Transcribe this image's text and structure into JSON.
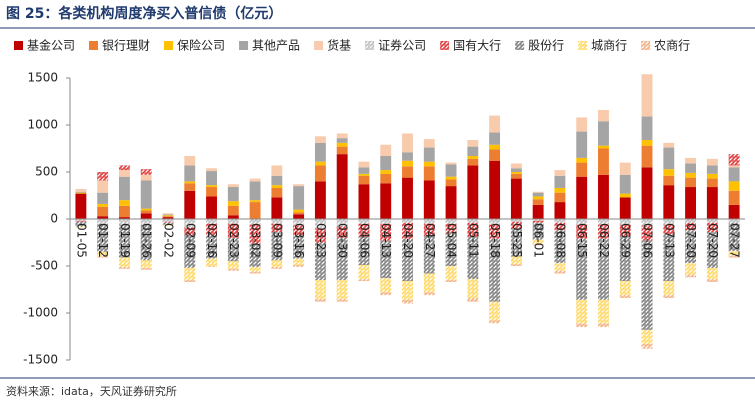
{
  "chart_data": {
    "type": "stacked_bar",
    "title": "图 25：各类机构周度净买入普信债（亿元）",
    "source": "资料来源：idata，天风证券研究所",
    "categories": [
      "01-05",
      "01-12",
      "01-19",
      "01-26",
      "02-02",
      "02-09",
      "02-16",
      "02-23",
      "03-02",
      "03-09",
      "03-16",
      "03-23",
      "03-30",
      "04-06",
      "04-13",
      "04-20",
      "04-27",
      "05-04",
      "05-11",
      "05-18",
      "05-25",
      "06-01",
      "06-08",
      "06-15",
      "06-22",
      "06-29",
      "07-06",
      "07-13",
      "07-20",
      "07-20",
      "07-27"
    ],
    "ylim": [
      -1500,
      1500
    ],
    "yticks": [
      -1500,
      -1000,
      -500,
      0,
      500,
      1000,
      1500
    ],
    "legend": "top",
    "series": [
      {
        "name": "基金公司",
        "color": "#c00000",
        "values": [
          270,
          30,
          20,
          60,
          20,
          300,
          240,
          40,
          0,
          230,
          50,
          400,
          690,
          370,
          380,
          440,
          410,
          350,
          570,
          620,
          430,
          150,
          180,
          450,
          470,
          230,
          550,
          360,
          340,
          340,
          150
        ]
      },
      {
        "name": "银行理财",
        "color": "#ed7d31",
        "values": [
          0,
          100,
          120,
          30,
          10,
          80,
          100,
          100,
          180,
          100,
          20,
          170,
          80,
          90,
          100,
          120,
          150,
          70,
          70,
          120,
          50,
          60,
          100,
          150,
          280,
          0,
          230,
          100,
          100,
          90,
          150
        ]
      },
      {
        "name": "保险公司",
        "color": "#ffc000",
        "values": [
          10,
          30,
          60,
          20,
          10,
          20,
          20,
          50,
          20,
          30,
          30,
          40,
          40,
          20,
          40,
          60,
          50,
          30,
          30,
          50,
          20,
          30,
          50,
          50,
          30,
          40,
          60,
          70,
          50,
          50,
          100
        ]
      },
      {
        "name": "其他产品",
        "color": "#a5a5a5",
        "values": [
          10,
          120,
          250,
          300,
          10,
          170,
          150,
          150,
          200,
          100,
          250,
          200,
          50,
          70,
          150,
          90,
          150,
          130,
          100,
          130,
          40,
          40,
          130,
          280,
          260,
          200,
          250,
          230,
          100,
          90,
          150
        ]
      },
      {
        "name": "货基",
        "color": "#f8cbad",
        "values": [
          30,
          130,
          70,
          60,
          10,
          100,
          30,
          30,
          30,
          110,
          20,
          70,
          50,
          60,
          120,
          200,
          90,
          20,
          70,
          180,
          50,
          10,
          60,
          150,
          120,
          130,
          450,
          50,
          60,
          70,
          20
        ]
      },
      {
        "name": "证券公司",
        "color": "#bfbfbf",
        "pattern": "hatch",
        "values": [
          -20,
          -50,
          -60,
          -60,
          -30,
          -90,
          -50,
          -50,
          -60,
          -50,
          -70,
          -100,
          -80,
          -50,
          -50,
          -40,
          -50,
          -50,
          -40,
          -60,
          -30,
          -20,
          -40,
          -60,
          -60,
          -60,
          -70,
          -60,
          -40,
          -40,
          -40
        ]
      },
      {
        "name": "国有大行",
        "color": "#e03c3c",
        "pattern": "hatch",
        "values": [
          -10,
          90,
          50,
          60,
          -10,
          -80,
          -120,
          -150,
          -200,
          -90,
          -100,
          -150,
          -120,
          -140,
          -180,
          -170,
          -130,
          -100,
          -150,
          -150,
          -70,
          -20,
          -80,
          -150,
          -150,
          -120,
          -160,
          -100,
          -80,
          -100,
          120
        ]
      },
      {
        "name": "股份行",
        "color": "#808080",
        "pattern": "hatch",
        "values": [
          -50,
          -300,
          -350,
          -380,
          -20,
          -350,
          -250,
          -250,
          -250,
          -300,
          -250,
          -400,
          -450,
          -300,
          -400,
          -450,
          -400,
          -350,
          -450,
          -670,
          -300,
          -180,
          -350,
          -650,
          -650,
          -480,
          -950,
          -500,
          -350,
          -380,
          -300
        ]
      },
      {
        "name": "城商行",
        "color": "#ffd966",
        "pattern": "hatch",
        "values": [
          -10,
          -50,
          -100,
          -80,
          -10,
          -130,
          -80,
          -80,
          -50,
          -70,
          -70,
          -200,
          -200,
          -150,
          -150,
          -200,
          -200,
          -150,
          -200,
          -200,
          -80,
          -50,
          -80,
          -250,
          -250,
          -150,
          -150,
          -150,
          -120,
          -120,
          -50
        ]
      },
      {
        "name": "农商行",
        "color": "#f4b183",
        "pattern": "hatch",
        "values": [
          0,
          -10,
          -20,
          -20,
          0,
          -20,
          -10,
          -20,
          -20,
          -20,
          -20,
          -30,
          -30,
          -20,
          -30,
          -40,
          -30,
          -20,
          -40,
          -30,
          -20,
          -10,
          -30,
          -40,
          -40,
          -30,
          -50,
          -30,
          -30,
          -30,
          -20
        ]
      }
    ]
  }
}
